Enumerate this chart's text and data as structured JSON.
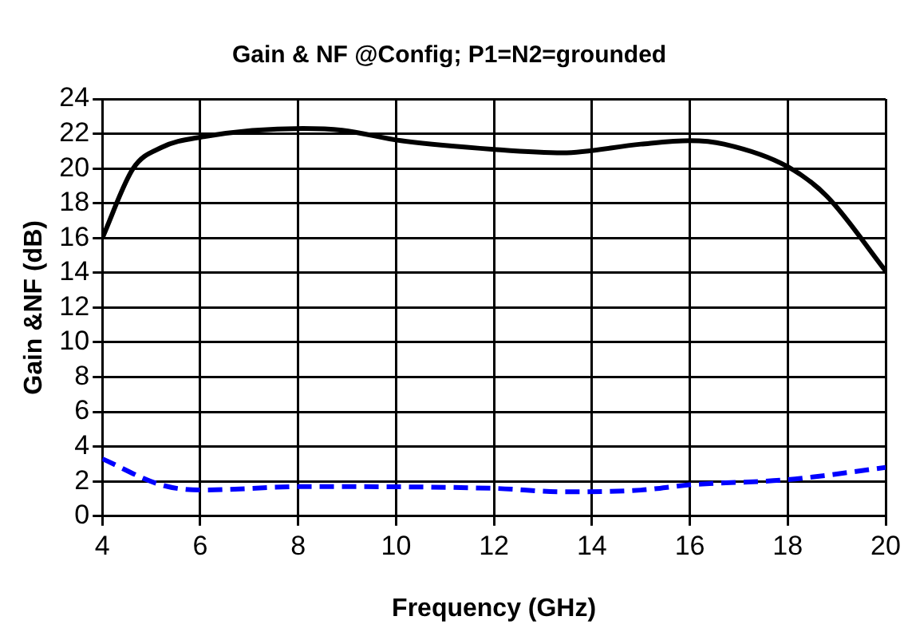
{
  "chart_data": {
    "type": "line",
    "title": "Gain & NF @Config; P1=N2=grounded",
    "xlabel": "Frequency (GHz)",
    "ylabel": "Gain &NF (dB)",
    "xlim": [
      4,
      20
    ],
    "xticks": [
      4,
      6,
      8,
      10,
      12,
      14,
      16,
      18,
      20
    ],
    "ylim": [
      0,
      24
    ],
    "yticks": [
      0,
      2,
      4,
      6,
      8,
      10,
      12,
      14,
      16,
      18,
      20,
      22,
      24
    ],
    "grid": true,
    "legend": false,
    "marker": "none",
    "series": [
      {
        "color": "#000000",
        "line_style": "solid",
        "x": [
          4,
          4.63,
          5.2,
          6,
          8.1,
          8.9,
          10.1,
          12,
          13.4,
          15,
          16,
          16.7,
          18,
          18.8,
          20
        ],
        "values": [
          16,
          20,
          21.2,
          21.8,
          22.3,
          22.2,
          21.6,
          21.1,
          20.9,
          21.4,
          21.6,
          21.4,
          20.1,
          18.4,
          14.1
        ]
      },
      {
        "color": "#0000ff",
        "line_style": "dashed",
        "x": [
          4,
          5.2,
          6,
          8.1,
          12,
          13.4,
          15,
          16,
          18,
          20
        ],
        "values": [
          3.3,
          1.8,
          1.5,
          1.7,
          1.6,
          1.4,
          1.5,
          1.8,
          2.1,
          2.8
        ]
      }
    ]
  }
}
